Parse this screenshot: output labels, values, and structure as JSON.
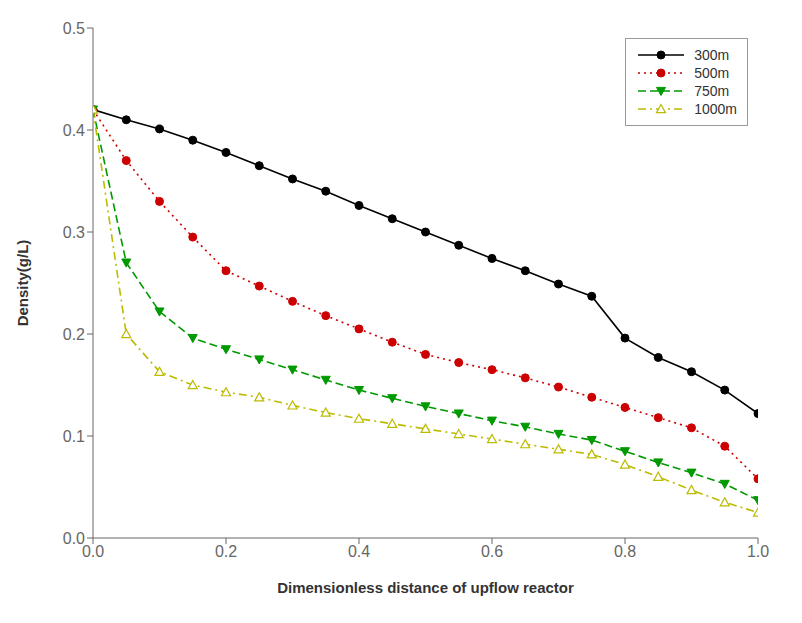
{
  "chart_data": {
    "type": "line",
    "xlabel": "Dimensionless distance of upflow reactor",
    "ylabel": "Density(g/L)",
    "x": [
      0.0,
      0.05,
      0.1,
      0.15,
      0.2,
      0.25,
      0.3,
      0.35,
      0.4,
      0.45,
      0.5,
      0.55,
      0.6,
      0.65,
      0.7,
      0.75,
      0.8,
      0.85,
      0.9,
      0.95,
      1.0
    ],
    "series": [
      {
        "name": "300m",
        "color": "black",
        "line_style": "solid",
        "marker": "circle",
        "values": [
          0.42,
          0.41,
          0.401,
          0.39,
          0.378,
          0.365,
          0.352,
          0.34,
          0.326,
          0.313,
          0.3,
          0.287,
          0.274,
          0.262,
          0.249,
          0.237,
          0.196,
          0.177,
          0.163,
          0.145,
          0.122
        ]
      },
      {
        "name": "500m",
        "color": "#cc0000",
        "line_style": "dotted",
        "marker": "circle",
        "values": [
          0.42,
          0.37,
          0.33,
          0.295,
          0.262,
          0.247,
          0.232,
          0.218,
          0.205,
          0.192,
          0.18,
          0.172,
          0.165,
          0.157,
          0.148,
          0.138,
          0.128,
          0.118,
          0.108,
          0.09,
          0.058
        ]
      },
      {
        "name": "750m",
        "color": "#009900",
        "line_style": "dashed",
        "marker": "triangle-down",
        "values": [
          0.42,
          0.27,
          0.222,
          0.196,
          0.185,
          0.175,
          0.165,
          0.155,
          0.145,
          0.137,
          0.129,
          0.122,
          0.115,
          0.109,
          0.102,
          0.096,
          0.085,
          0.074,
          0.064,
          0.053,
          0.037
        ]
      },
      {
        "name": "1000m",
        "color": "#bbbb00",
        "line_style": "dashdot",
        "marker": "open-triangle-up",
        "values": [
          0.42,
          0.2,
          0.163,
          0.15,
          0.143,
          0.138,
          0.13,
          0.123,
          0.117,
          0.112,
          0.107,
          0.102,
          0.097,
          0.092,
          0.087,
          0.082,
          0.072,
          0.06,
          0.047,
          0.035,
          0.025
        ]
      }
    ],
    "xlim": [
      0,
      1.0
    ],
    "ylim": [
      0,
      0.5
    ],
    "xticks": [
      {
        "value": 0,
        "label": "0.0"
      },
      0.2,
      0.4,
      0.6,
      0.8,
      {
        "value": 1,
        "label": "1.0"
      }
    ],
    "yticks": [
      {
        "value": 0,
        "label": "0.0"
      },
      0.1,
      0.2,
      0.3,
      0.4,
      0.5
    ],
    "grid": false,
    "legend": "upper right"
  }
}
